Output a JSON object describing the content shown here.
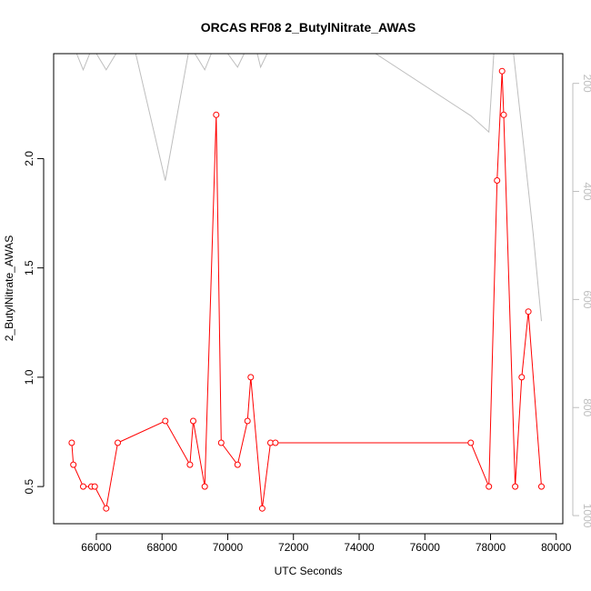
{
  "chart_data": {
    "type": "line",
    "title": "ORCAS RF08 2_ButylNitrate_AWAS",
    "xlabel": "UTC Seconds",
    "ylabel": "2_ButylNitrate_AWAS",
    "xlim": [
      64700,
      80200
    ],
    "ylim": [
      0.33,
      2.48
    ],
    "x_ticks": [
      66000,
      68000,
      70000,
      72000,
      74000,
      76000,
      78000,
      80000
    ],
    "y_ticks": [
      0.5,
      1.0,
      1.5,
      2.0
    ],
    "y_tick_labels": [
      "0.5",
      "1.0",
      "1.5",
      "2.0"
    ],
    "y2lim": [
      1015,
      145
    ],
    "y2_ticks": [
      200,
      400,
      600,
      800,
      1000
    ],
    "grid": false,
    "series": [
      {
        "color": "#ff0000",
        "style": "line+circle",
        "axis": "left",
        "x": [
          65250,
          65300,
          65600,
          65850,
          65950,
          66300,
          66650,
          68100,
          68850,
          68950,
          69300,
          69650,
          69800,
          70300,
          70600,
          70700,
          71050,
          71300,
          71450,
          77400,
          77950,
          78200,
          78350,
          78400,
          78750,
          78950,
          79150,
          79550
        ],
        "y": [
          0.7,
          0.6,
          0.5,
          0.5,
          0.5,
          0.4,
          0.7,
          0.8,
          0.6,
          0.8,
          0.5,
          2.2,
          0.7,
          0.6,
          0.8,
          1.0,
          0.4,
          0.7,
          0.7,
          0.7,
          0.5,
          1.9,
          2.4,
          2.2,
          0.5,
          1.0,
          1.3,
          0.5
        ]
      },
      {
        "color": "#bebebe",
        "style": "line",
        "axis": "right",
        "x": [
          65400,
          65600,
          65800,
          66000,
          66300,
          66600,
          67200,
          68100,
          68800,
          69000,
          69300,
          69500,
          70000,
          70300,
          70500,
          70900,
          71000,
          71200,
          74500,
          77400,
          77950,
          78100,
          78400,
          78700,
          79000,
          79300,
          79550
        ],
        "y": [
          145,
          175,
          145,
          145,
          175,
          145,
          145,
          380,
          145,
          145,
          175,
          145,
          145,
          170,
          145,
          145,
          170,
          145,
          145,
          260,
          290,
          145,
          145,
          145,
          310,
          480,
          640
        ]
      }
    ]
  }
}
